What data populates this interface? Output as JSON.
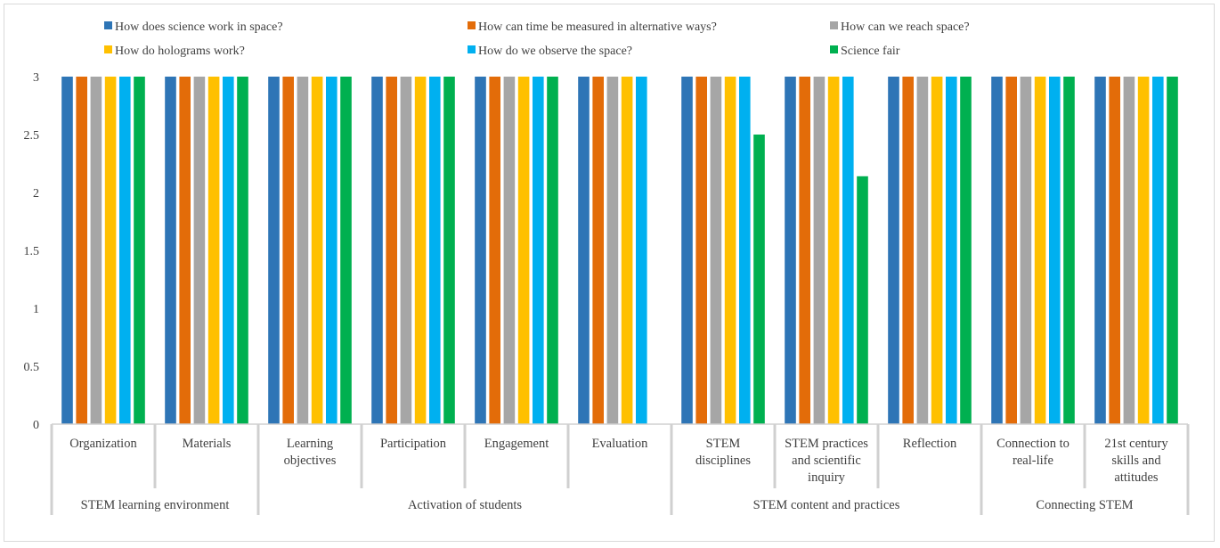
{
  "chart_data": {
    "type": "bar",
    "title": "",
    "xlabel": "",
    "ylabel": "",
    "ylim": [
      0,
      3
    ],
    "yticks": [
      "0",
      "0.5",
      "1",
      "1.5",
      "2",
      "2.5",
      "3"
    ],
    "grid": false,
    "legend_position": "top",
    "categories": [
      "Organization",
      "Materials",
      "Learning objectives",
      "Participation",
      "Engagement",
      "Evaluation",
      "STEM disciplines",
      "STEM practices and scientific inquiry",
      "Reflection",
      "Connection to real-life",
      "21st century skills and attitudes"
    ],
    "category_lines": [
      [
        "Organization"
      ],
      [
        "Materials"
      ],
      [
        "Learning",
        "objectives"
      ],
      [
        "Participation"
      ],
      [
        "Engagement"
      ],
      [
        "Evaluation"
      ],
      [
        "STEM",
        "disciplines"
      ],
      [
        "STEM practices",
        "and scientific",
        "inquiry"
      ],
      [
        "Reflection"
      ],
      [
        "Connection to",
        "real-life"
      ],
      [
        "21st century",
        "skills and",
        "attitudes"
      ]
    ],
    "groups": [
      {
        "label": "STEM learning environment",
        "categories": [
          "Organization",
          "Materials"
        ]
      },
      {
        "label": "Activation of students",
        "categories": [
          "Learning objectives",
          "Participation",
          "Engagement",
          "Evaluation"
        ]
      },
      {
        "label": "STEM content and practices",
        "categories": [
          "STEM disciplines",
          "STEM practices and scientific inquiry",
          "Reflection"
        ]
      },
      {
        "label": "Connecting STEM",
        "categories": [
          "Connection to real-life",
          "21st century skills and attitudes"
        ]
      }
    ],
    "series": [
      {
        "name": "How does science work in space?",
        "color": "#2e75b6",
        "values": [
          3,
          3,
          3,
          3,
          3,
          3,
          3,
          3,
          3,
          3,
          3
        ]
      },
      {
        "name": "How can time  be measured in alternative ways?",
        "color": "#e36c09",
        "values": [
          3,
          3,
          3,
          3,
          3,
          3,
          3,
          3,
          3,
          3,
          3
        ]
      },
      {
        "name": "How can we reach space?",
        "color": "#a6a6a6",
        "values": [
          3,
          3,
          3,
          3,
          3,
          3,
          3,
          3,
          3,
          3,
          3
        ]
      },
      {
        "name": "How do holograms work?",
        "color": "#ffc000",
        "values": [
          3,
          3,
          3,
          3,
          3,
          3,
          3,
          3,
          3,
          3,
          3
        ]
      },
      {
        "name": "How do we observe the space?",
        "color": "#00b0f0",
        "values": [
          3,
          3,
          3,
          3,
          3,
          3,
          3,
          3,
          3,
          3,
          3
        ]
      },
      {
        "name": "Science fair",
        "color": "#00b050",
        "values": [
          3,
          3,
          3,
          3,
          3,
          null,
          2.5,
          2.14,
          3,
          3,
          3
        ]
      }
    ]
  }
}
